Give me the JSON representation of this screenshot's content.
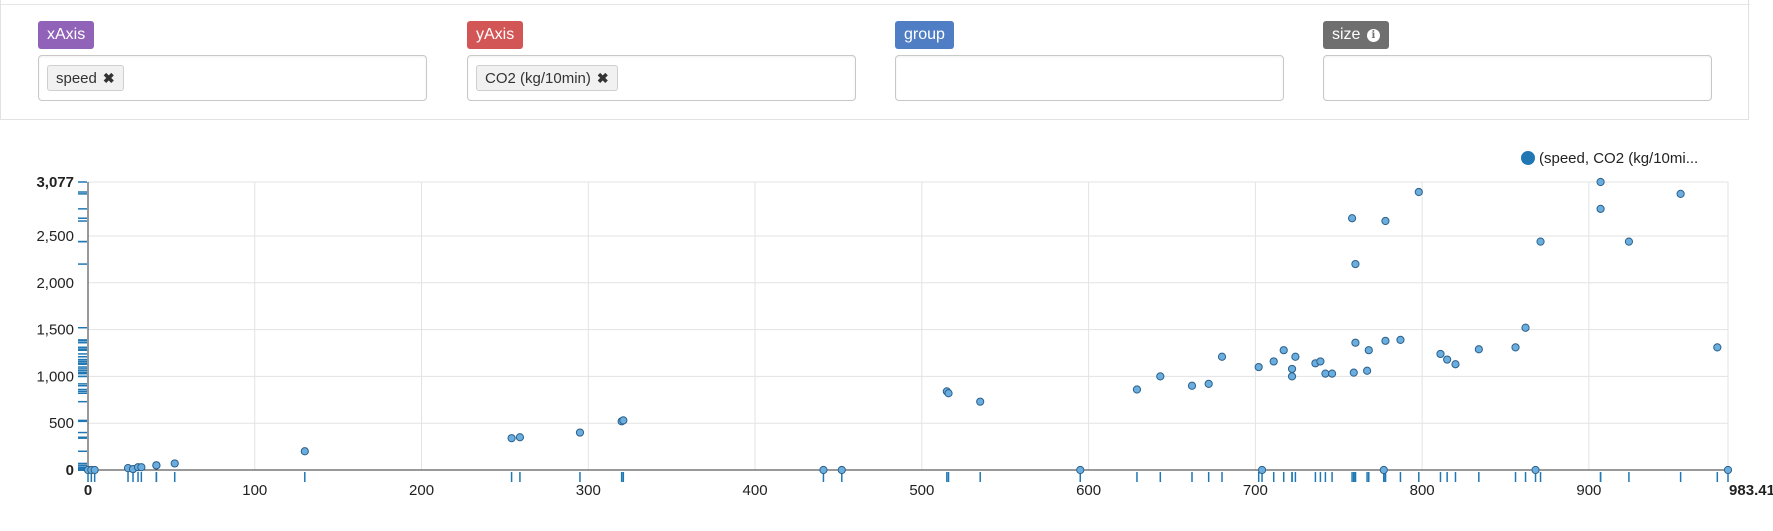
{
  "fields": [
    {
      "id": "xaxis",
      "label": "xAxis",
      "color": "#9163b8",
      "chip": "speed"
    },
    {
      "id": "yaxis",
      "label": "yAxis",
      "color": "#d35656",
      "chip": "CO2 (kg/10min)"
    },
    {
      "id": "group",
      "label": "group",
      "color": "#4f7ec4",
      "chip": ""
    },
    {
      "id": "size",
      "label": "size",
      "color": "#6f6f6f",
      "chip": "",
      "icon": "info-circle-icon"
    }
  ],
  "chip_remove_icon": "close-icon",
  "chart_data": {
    "type": "scatter",
    "legend": {
      "label": "(speed, CO2 (kg/10mi...",
      "placement": "top-right"
    },
    "x_ticks": [
      "0",
      "100",
      "200",
      "300",
      "400",
      "500",
      "600",
      "700",
      "800",
      "900",
      "983.41"
    ],
    "y_ticks": [
      "0",
      "500",
      "1,000",
      "1,500",
      "2,000",
      "2,500",
      "3,077"
    ],
    "xlim": [
      0,
      983.41
    ],
    "ylim": [
      0,
      3077
    ],
    "grid": true,
    "rug": true,
    "color": "#1f77b4",
    "series": [
      {
        "x": [
          0,
          2,
          4,
          24,
          27,
          30,
          32,
          41,
          41,
          52,
          130,
          254,
          259,
          295,
          320,
          321,
          441,
          452,
          515,
          516,
          535,
          595,
          629,
          643,
          662,
          672,
          680,
          702,
          704,
          711,
          717,
          722,
          722,
          724,
          736,
          739,
          742,
          746,
          758,
          759,
          760,
          760,
          767,
          768,
          777,
          778,
          778,
          787,
          798,
          811,
          815,
          820,
          834,
          856,
          862,
          868,
          871,
          907,
          907,
          924,
          955,
          977,
          983.41
        ],
        "y": [
          0,
          0,
          0,
          20,
          10,
          30,
          30,
          50,
          50,
          70,
          200,
          340,
          350,
          400,
          520,
          530,
          0,
          0,
          840,
          820,
          730,
          0,
          860,
          1000,
          900,
          920,
          1210,
          1100,
          0,
          1160,
          1280,
          1080,
          1000,
          1210,
          1140,
          1160,
          1030,
          1030,
          2690,
          1040,
          1360,
          2200,
          1060,
          1280,
          0,
          1380,
          2660,
          1390,
          2970,
          1240,
          1180,
          1130,
          1290,
          1310,
          1520,
          0,
          2440,
          3077,
          2790,
          2440,
          2950,
          1310,
          0
        ]
      }
    ]
  }
}
